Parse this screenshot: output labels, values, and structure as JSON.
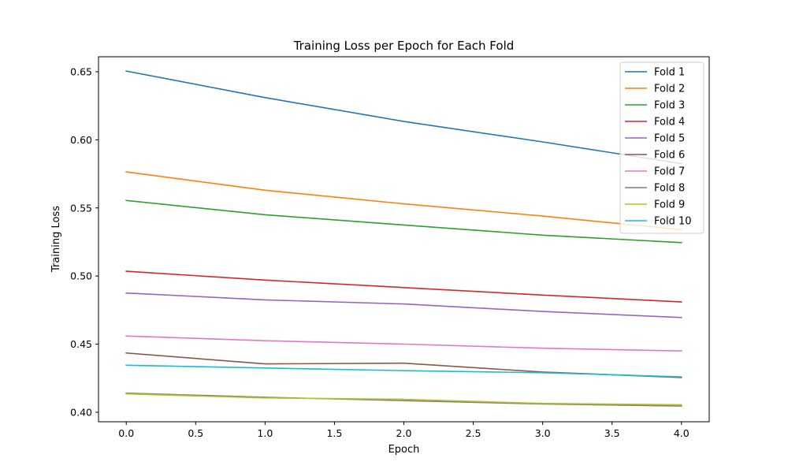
{
  "chart_data": {
    "type": "line",
    "title": "Training Loss per Epoch for Each Fold",
    "xlabel": "Epoch",
    "ylabel": "Training Loss",
    "x": [
      0,
      1,
      2,
      3,
      4
    ],
    "xlim": [
      -0.2,
      4.2
    ],
    "ylim": [
      0.393,
      0.661
    ],
    "xticks": [
      0.0,
      0.5,
      1.0,
      1.5,
      2.0,
      2.5,
      3.0,
      3.5,
      4.0
    ],
    "xtick_labels": [
      "0.0",
      "0.5",
      "1.0",
      "1.5",
      "2.0",
      "2.5",
      "3.0",
      "3.5",
      "4.0"
    ],
    "yticks": [
      0.4,
      0.45,
      0.5,
      0.55,
      0.6,
      0.65
    ],
    "ytick_labels": [
      "0.40",
      "0.45",
      "0.50",
      "0.55",
      "0.60",
      "0.65"
    ],
    "grid": false,
    "legend_position": "top-right",
    "series": [
      {
        "name": "Fold 1",
        "color": "#1f77b4",
        "values": [
          0.6505,
          0.631,
          0.6135,
          0.5985,
          0.5825
        ]
      },
      {
        "name": "Fold 2",
        "color": "#ff7f0e",
        "values": [
          0.5765,
          0.563,
          0.553,
          0.544,
          0.534
        ]
      },
      {
        "name": "Fold 3",
        "color": "#2ca02c",
        "values": [
          0.5555,
          0.545,
          0.5375,
          0.53,
          0.5245
        ]
      },
      {
        "name": "Fold 4",
        "color": "#d62728",
        "values": [
          0.5035,
          0.497,
          0.4915,
          0.486,
          0.481
        ]
      },
      {
        "name": "Fold 5",
        "color": "#9467bd",
        "values": [
          0.4875,
          0.4825,
          0.4795,
          0.474,
          0.4695
        ]
      },
      {
        "name": "Fold 6",
        "color": "#8c564b",
        "values": [
          0.4435,
          0.4355,
          0.436,
          0.4295,
          0.4255
        ]
      },
      {
        "name": "Fold 7",
        "color": "#e377c2",
        "values": [
          0.456,
          0.4525,
          0.45,
          0.447,
          0.445
        ]
      },
      {
        "name": "Fold 8",
        "color": "#7f7f7f",
        "values": [
          0.414,
          0.411,
          0.4085,
          0.406,
          0.4045
        ]
      },
      {
        "name": "Fold 9",
        "color": "#bcbd22",
        "values": [
          0.4135,
          0.4105,
          0.4095,
          0.4065,
          0.4055
        ]
      },
      {
        "name": "Fold 10",
        "color": "#17becf",
        "values": [
          0.4345,
          0.4325,
          0.4305,
          0.429,
          0.426
        ]
      }
    ]
  }
}
